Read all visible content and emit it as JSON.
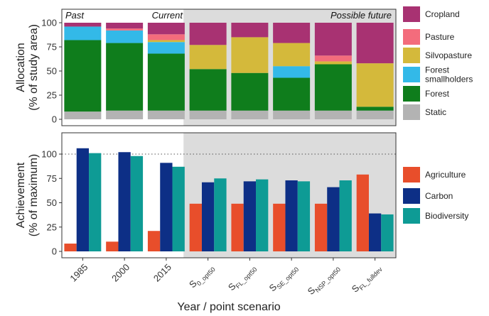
{
  "xlabel": "Year / point scenario",
  "categories": [
    {
      "label": "1985"
    },
    {
      "label": "2000"
    },
    {
      "label": "2015"
    },
    {
      "label": "S",
      "sub": "0_opt50"
    },
    {
      "label": "S",
      "sub": "FL_opt50"
    },
    {
      "label": "S",
      "sub": "SE_opt50"
    },
    {
      "label": "S",
      "sub": "NSP_opt50"
    },
    {
      "label": "S",
      "sub": "FL_fulldev"
    }
  ],
  "period_labels": {
    "past": "Past",
    "current": "Current",
    "future": "Possible future"
  },
  "chart_data": [
    {
      "type": "bar",
      "stacked": true,
      "ylabel_lines": [
        "Allocation",
        "(% of study area)"
      ],
      "ylim": [
        0,
        100
      ],
      "yticks": [
        0,
        25,
        50,
        75,
        100
      ],
      "legend_placement": "right",
      "series": [
        {
          "name": "Static",
          "color": "#b3b3b3",
          "values": [
            8,
            9,
            9,
            9,
            9,
            9,
            9,
            9
          ]
        },
        {
          "name": "Forest",
          "color": "#0f7d1c",
          "values": [
            74,
            70,
            59,
            43,
            39,
            34,
            48,
            4
          ]
        },
        {
          "name": "Forest smallholders",
          "color": "#33b9e8",
          "values": [
            14,
            13,
            12,
            0,
            0,
            12,
            0,
            0
          ]
        },
        {
          "name": "Silvopasture",
          "color": "#d4b93b",
          "values": [
            0,
            0,
            2,
            25,
            37,
            24,
            3,
            45
          ]
        },
        {
          "name": "Pasture",
          "color": "#f36c7c",
          "values": [
            0,
            2,
            6,
            0,
            0,
            0,
            6,
            0
          ]
        },
        {
          "name": "Cropland",
          "color": "#a83272",
          "values": [
            4,
            6,
            12,
            23,
            15,
            21,
            34,
            42
          ]
        }
      ]
    },
    {
      "type": "bar",
      "stacked": false,
      "ylabel_lines": [
        "Achievement",
        "(% of maximum)"
      ],
      "ylim": [
        0,
        110
      ],
      "yticks": [
        0,
        25,
        50,
        75,
        100
      ],
      "reference_line": 100,
      "legend_placement": "right",
      "series": [
        {
          "name": "Agriculture",
          "color": "#e84e2b",
          "values": [
            8,
            10,
            21,
            49,
            49,
            49,
            49,
            79
          ]
        },
        {
          "name": "Carbon",
          "color": "#0d2f86",
          "values": [
            106,
            102,
            91,
            71,
            72,
            73,
            66,
            39
          ]
        },
        {
          "name": "Biodiversity",
          "color": "#0e9b95",
          "values": [
            101,
            98,
            87,
            75,
            74,
            72,
            73,
            38
          ]
        }
      ]
    }
  ],
  "legends": [
    {
      "items": [
        {
          "lines": [
            "Cropland"
          ],
          "color": "#a83272"
        },
        {
          "lines": [
            "Pasture"
          ],
          "color": "#f36c7c"
        },
        {
          "lines": [
            "Silvopasture"
          ],
          "color": "#d4b93b"
        },
        {
          "lines": [
            "Forest",
            "smallholders"
          ],
          "color": "#33b9e8"
        },
        {
          "lines": [
            "Forest"
          ],
          "color": "#0f7d1c"
        },
        {
          "lines": [
            "Static"
          ],
          "color": "#b3b3b3"
        }
      ]
    },
    {
      "items": [
        {
          "lines": [
            "Agriculture"
          ],
          "color": "#e84e2b"
        },
        {
          "lines": [
            "Carbon"
          ],
          "color": "#0d2f86"
        },
        {
          "lines": [
            "Biodiversity"
          ],
          "color": "#0e9b95"
        }
      ]
    }
  ]
}
